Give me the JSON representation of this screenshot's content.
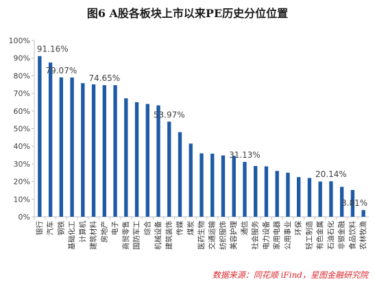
{
  "chart_data": {
    "type": "bar",
    "title": "图6  A股各板块上市以来PE历史分位位置",
    "source": "数据来源：同花顺 iFind，星图金融研究院",
    "bar_color": "#1f5aa6",
    "categories": [
      "银行",
      "汽车",
      "钢铁",
      "基础化工",
      "计算机",
      "建筑材料",
      "房地产",
      "电子",
      "商贸零售",
      "国防军工",
      "综合",
      "机械设备",
      "建筑装饰",
      "传媒",
      "煤炭",
      "医药生物",
      "交通运输",
      "纺织服饰",
      "美容护理",
      "通信",
      "社会服务",
      "电力设备",
      "家用电器",
      "公用事业",
      "环保",
      "轻工制造",
      "有色金属",
      "石油石化",
      "非银金融",
      "食品饮料",
      "农林牧渔"
    ],
    "values": [
      91.16,
      87.5,
      79.07,
      79.0,
      75.8,
      75.1,
      74.65,
      74.65,
      67.2,
      65.0,
      64.0,
      63.2,
      53.97,
      48.0,
      41.5,
      36.0,
      35.8,
      34.8,
      34.5,
      31.13,
      28.8,
      28.6,
      26.0,
      25.0,
      22.5,
      22.0,
      20.0,
      20.14,
      17.0,
      15.2,
      3.81
    ],
    "labels": [
      {
        "index": 0,
        "text": "91.16%"
      },
      {
        "index": 2,
        "text": "79.07%"
      },
      {
        "index": 6,
        "text": "74.65%"
      },
      {
        "index": 12,
        "text": "53.97%"
      },
      {
        "index": 19,
        "text": "31.13%"
      },
      {
        "index": 27,
        "text": "20.14%"
      },
      {
        "index": 30,
        "text": "3.81%"
      }
    ],
    "y_ticks": [
      "0%",
      "10%",
      "20%",
      "30%",
      "40%",
      "50%",
      "60%",
      "70%",
      "80%",
      "90%",
      "100%"
    ],
    "ylim": [
      0,
      100
    ],
    "grid": false,
    "legend": "none"
  }
}
